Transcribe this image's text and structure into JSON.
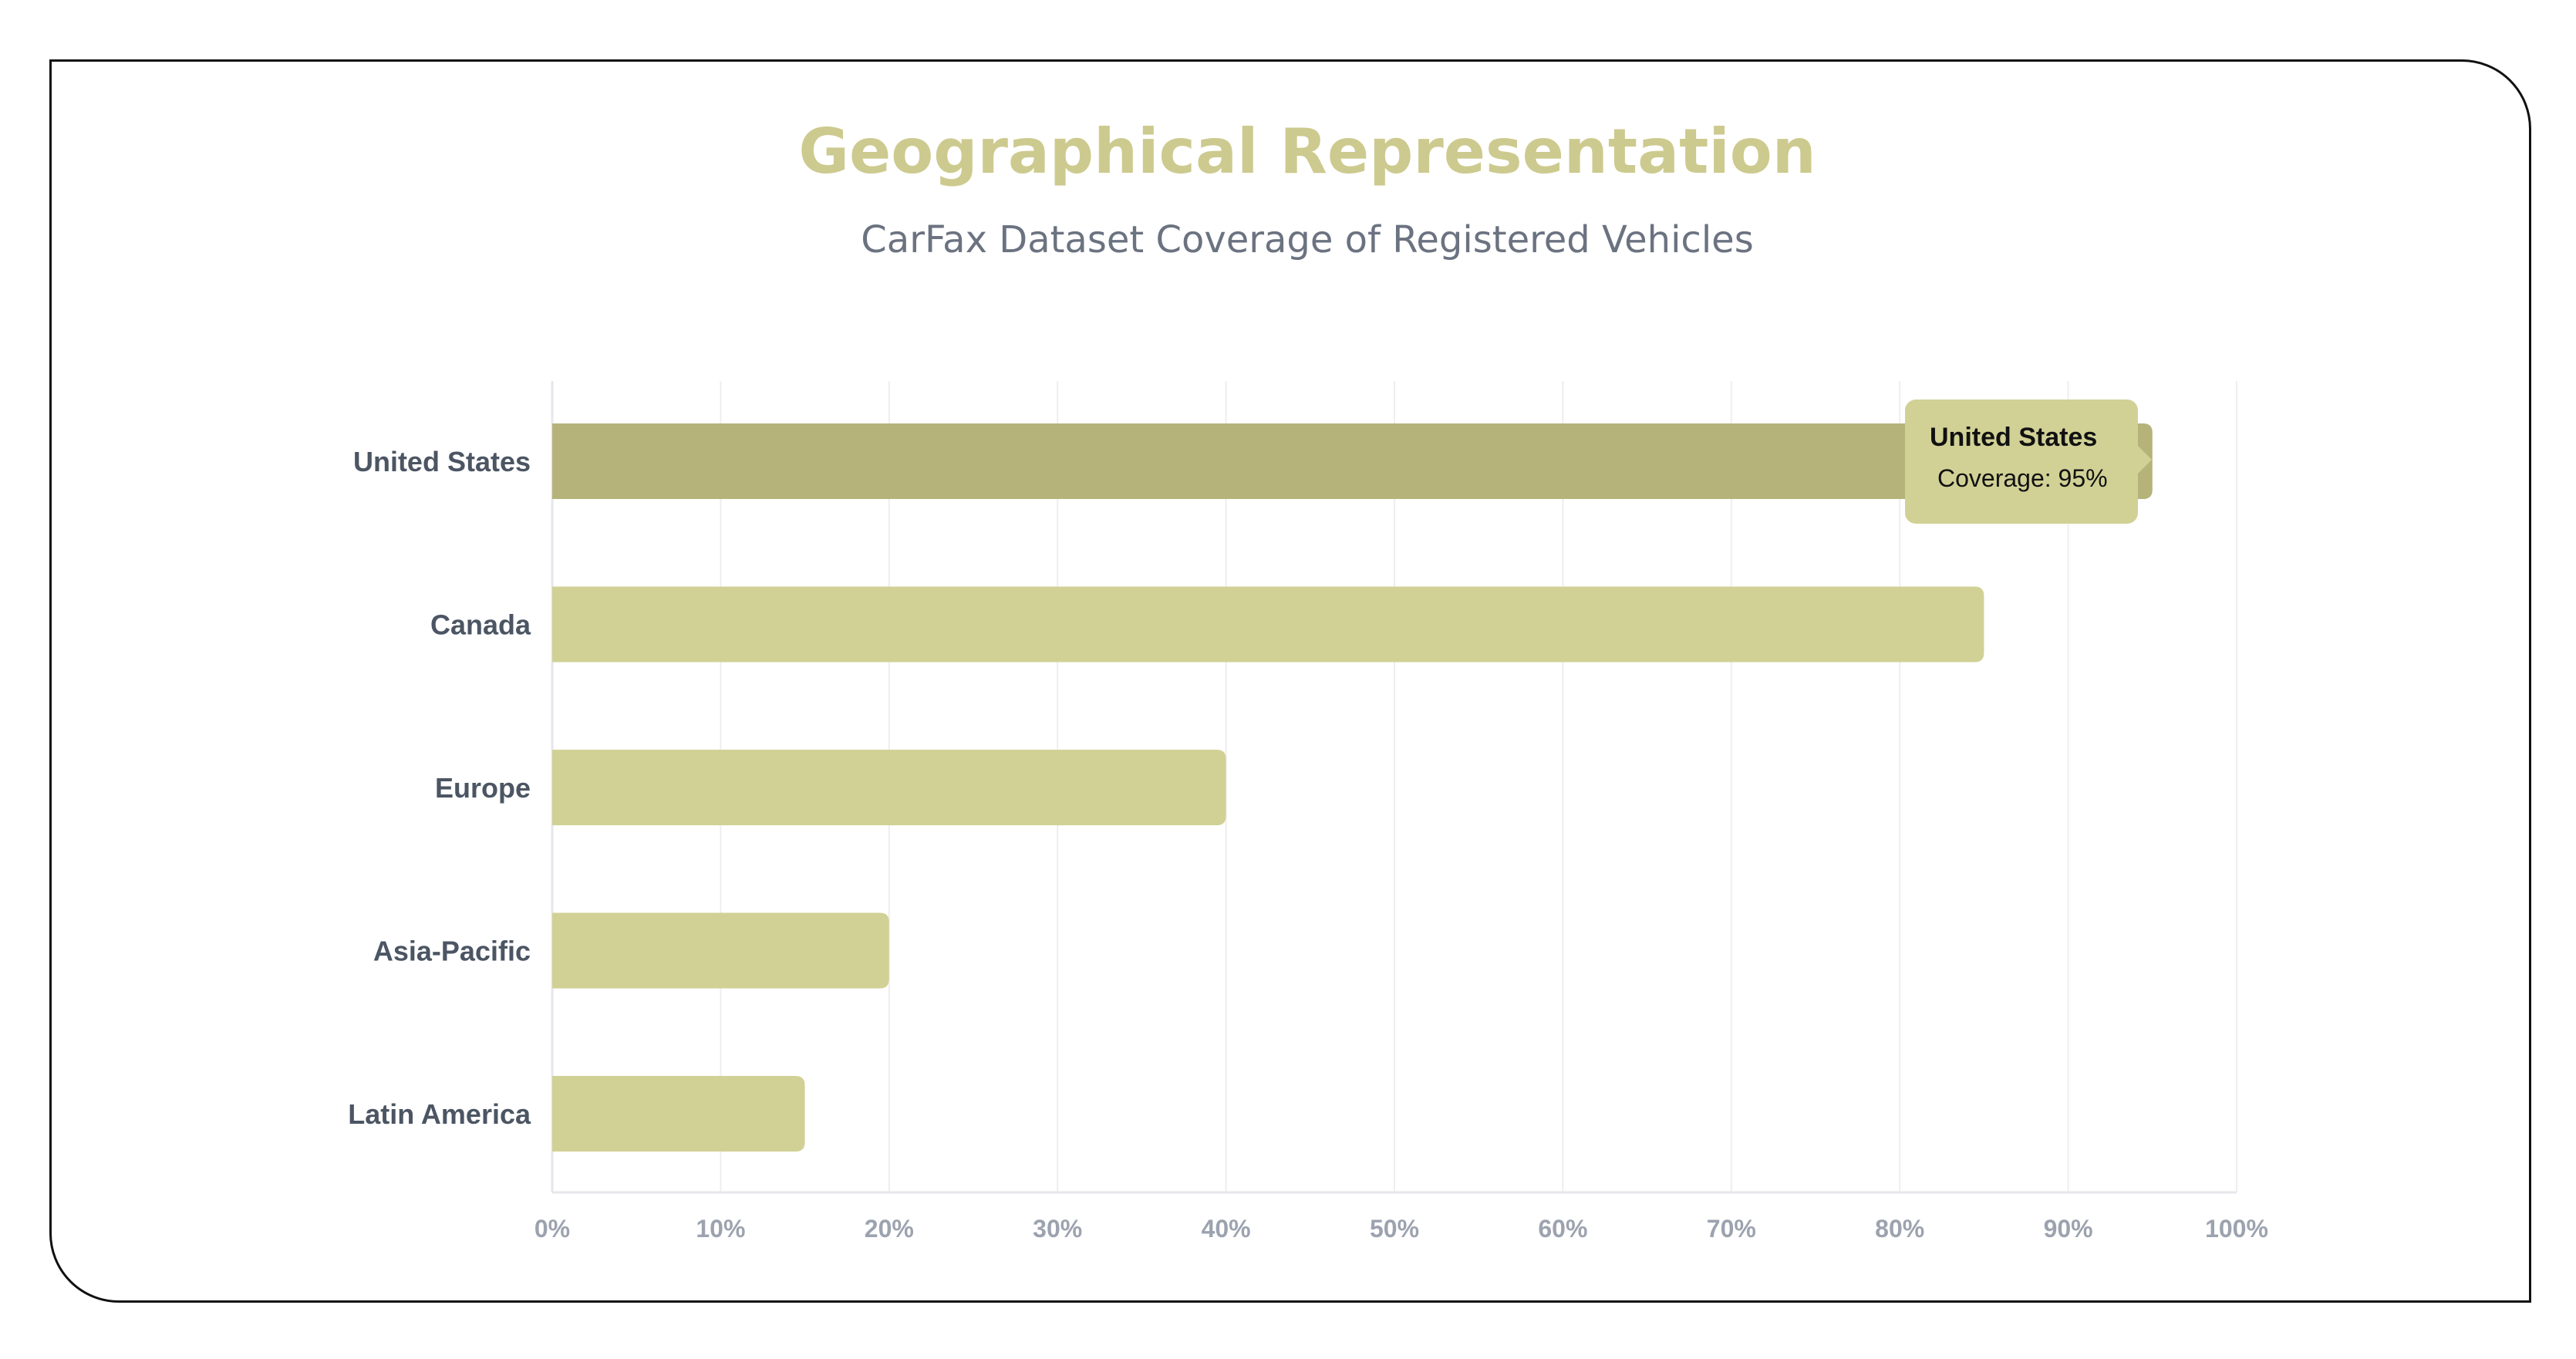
{
  "page": {
    "title": "Geographical Representation",
    "subtitle": "CarFax Dataset Coverage of Registered Vehicles"
  },
  "chart_data": {
    "type": "bar",
    "orientation": "horizontal",
    "title": "Geographical Representation",
    "subtitle": "CarFax Dataset Coverage of Registered Vehicles",
    "categories": [
      "United States",
      "Canada",
      "Europe",
      "Asia-Pacific",
      "Latin America"
    ],
    "values": [
      95,
      85,
      40,
      20,
      15
    ],
    "xlim": [
      0,
      100
    ],
    "x_ticks": [
      "0%",
      "10%",
      "20%",
      "30%",
      "40%",
      "50%",
      "60%",
      "70%",
      "80%",
      "90%",
      "100%"
    ],
    "grid": true,
    "legend": "none",
    "colors": {
      "bar": "#d1d196",
      "bar_highlight": "#b6b37a",
      "grid": "#eeeeee",
      "axis": "#e5e7eb",
      "tick_label": "#9ca3af",
      "category_label": "#4b5563"
    },
    "highlighted_index": 0
  },
  "tooltip": {
    "title": "United States",
    "body": "Coverage: 95%"
  }
}
